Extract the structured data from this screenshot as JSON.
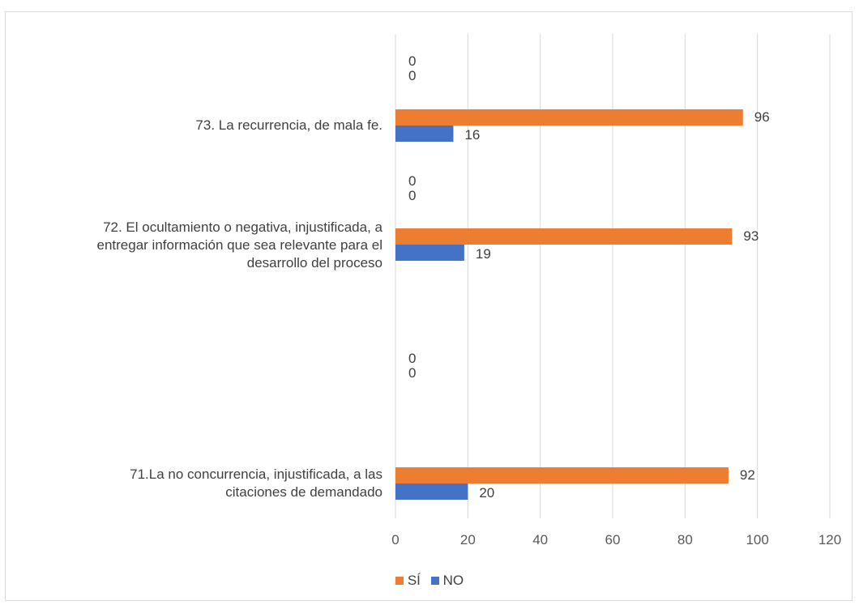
{
  "chart_data": {
    "type": "bar",
    "orientation": "horizontal",
    "categories": [
      "71.La no concurrencia, injustificada, a las citaciones de demandado",
      "72. El ocultamiento o negativa, injustificada, a entregar información que sea relevante para el desarrollo del proceso",
      "73. La recurrencia, de mala fe."
    ],
    "category_lines": [
      [
        "71.La no concurrencia, injustificada, a las",
        "citaciones de demandado"
      ],
      [
        "72. El ocultamiento o negativa, injustificada, a",
        "entregar información que sea relevante para el",
        "desarrollo del proceso"
      ],
      [
        "73. La recurrencia, de mala fe."
      ]
    ],
    "series": [
      {
        "name": "SÍ",
        "color": "#ed7d31",
        "values": [
          92,
          93,
          96
        ]
      },
      {
        "name": "NO",
        "color": "#4472c4",
        "values": [
          20,
          19,
          16
        ]
      }
    ],
    "zero_label_pairs": [
      [
        "0",
        "0"
      ],
      [
        "0",
        "0"
      ],
      [
        "0",
        "0"
      ]
    ],
    "x_ticks": [
      "0",
      "20",
      "40",
      "60",
      "80",
      "100",
      "120"
    ],
    "xlim": [
      0,
      120
    ],
    "grid": true,
    "legend_position": "bottom",
    "title": "",
    "xlabel": "",
    "ylabel": ""
  }
}
